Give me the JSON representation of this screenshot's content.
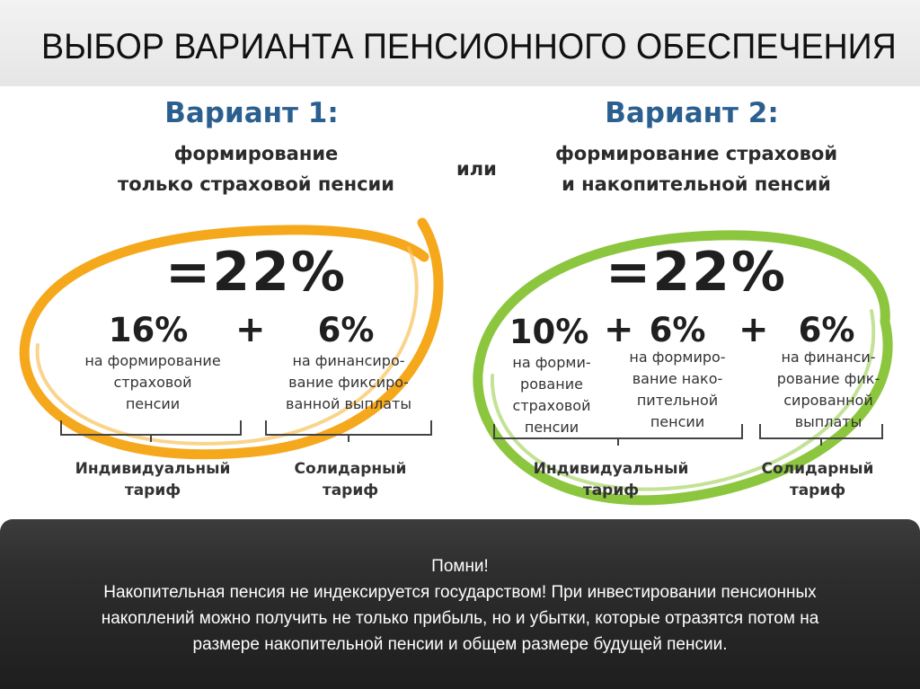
{
  "slide": {
    "title": "ВЫБОР ВАРИАНТА ПЕНСИОННОГО ОБЕСПЕЧЕНИЯ",
    "or_label": "или",
    "option1": {
      "heading": "Вариант 1:",
      "subtitle_line1": "формирование",
      "subtitle_line2": "только страховой пенсии",
      "total": "=22%",
      "ring_color": "#f5a81c",
      "parts": [
        {
          "value": "16%",
          "desc": "на формирование\nстраховой\nпенсии"
        },
        {
          "value": "6%",
          "desc": "на финансиро-\nвание фиксиро-\nванной выплаты"
        }
      ],
      "plus": "+",
      "tariffs": [
        {
          "label": "Индивидуальный\nтариф"
        },
        {
          "label": "Солидарный\nтариф"
        }
      ]
    },
    "option2": {
      "heading": "Вариант 2:",
      "subtitle_line1": "формирование страховой",
      "subtitle_line2": "и накопительной пенсий",
      "total": "=22%",
      "ring_color": "#8cc63f",
      "parts": [
        {
          "value": "10%",
          "desc": "на форми-\nрование\nстраховой\nпенсии"
        },
        {
          "value": "6%",
          "desc": "на формиро-\nвание нако-\nпительной\nпенсии"
        },
        {
          "value": "6%",
          "desc": "на финанси-\nрование фик-\nсированной\nвыплаты"
        }
      ],
      "plus": "+",
      "tariffs": [
        {
          "label": "Индивидуальный\nтариф"
        },
        {
          "label": "Солидарный\nтариф"
        }
      ]
    }
  },
  "note": {
    "line1": "Помни!",
    "line2": "Накопительная пенсия не индексируется государством! При инвестировании пенсионных",
    "line3": "накоплений можно получить не только прибыль, но и убытки, которые отразятся потом на",
    "line4": "размере накопительной пенсии и общем размере будущей пенсии."
  }
}
